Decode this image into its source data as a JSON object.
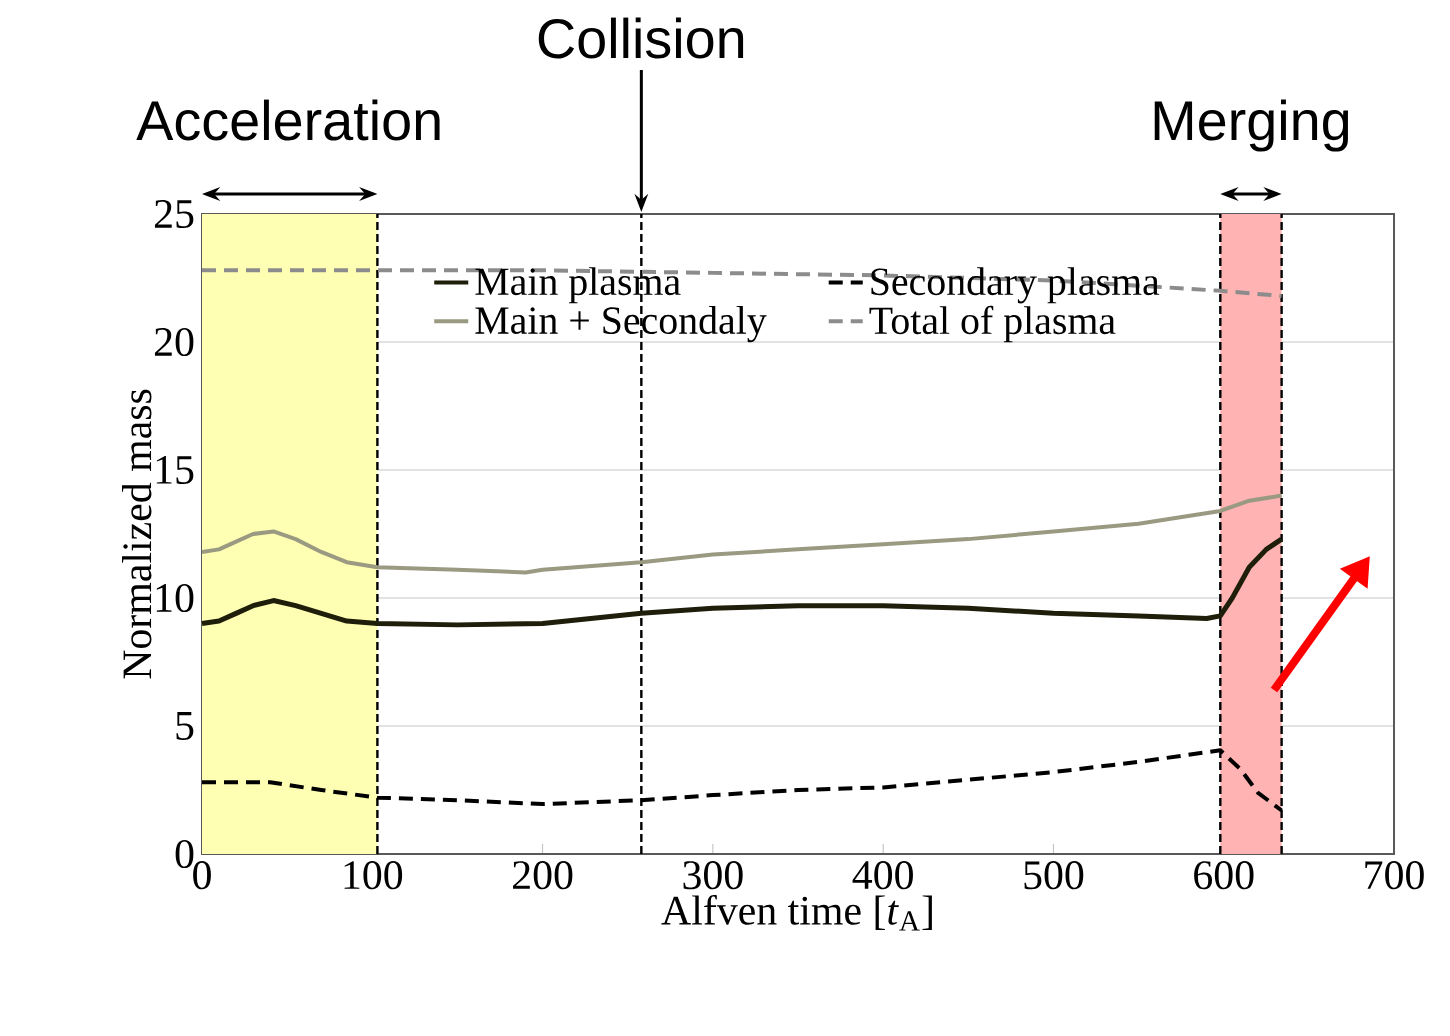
{
  "chart_data": {
    "type": "line",
    "xlabel": "Alfven time [*t*$_{A}$]",
    "ylabel": "Normalized mass",
    "xlim": [
      0,
      700
    ],
    "xticks": [
      0,
      100,
      200,
      300,
      400,
      500,
      600,
      700
    ],
    "ylim": [
      0,
      25
    ],
    "yticks": [
      0,
      5,
      10,
      15,
      20,
      25
    ],
    "grid": "y",
    "legend": "top",
    "marker": "none",
    "series": [
      {
        "name": "Main plasma",
        "color": "#1e1e0a",
        "line_style": "solid",
        "x": [
          0,
          10,
          20,
          30,
          42,
          55,
          70,
          85,
          103,
          150,
          200,
          258,
          300,
          350,
          400,
          450,
          500,
          550,
          590,
          598,
          605,
          615,
          625,
          634
        ],
        "values": [
          9.0,
          9.1,
          9.4,
          9.7,
          9.9,
          9.7,
          9.4,
          9.1,
          9.0,
          8.95,
          9.0,
          9.4,
          9.6,
          9.7,
          9.7,
          9.6,
          9.4,
          9.3,
          9.2,
          9.3,
          10.0,
          11.2,
          11.9,
          12.3
        ]
      },
      {
        "name": "Secondary plasma",
        "color": "#000000",
        "line_style": "dashed",
        "x": [
          0,
          40,
          70,
          103,
          150,
          200,
          258,
          300,
          350,
          400,
          450,
          500,
          550,
          598,
          610,
          620,
          634
        ],
        "values": [
          2.8,
          2.8,
          2.5,
          2.2,
          2.1,
          1.95,
          2.1,
          2.3,
          2.5,
          2.6,
          2.9,
          3.2,
          3.6,
          4.05,
          3.3,
          2.4,
          1.7
        ]
      },
      {
        "name": "Main + Secondaly",
        "color": "#9a9a82",
        "line_style": "solid",
        "x": [
          0,
          10,
          20,
          30,
          42,
          55,
          70,
          85,
          103,
          150,
          190,
          200,
          258,
          300,
          350,
          400,
          450,
          500,
          550,
          598,
          615,
          634
        ],
        "values": [
          11.8,
          11.9,
          12.2,
          12.5,
          12.6,
          12.3,
          11.8,
          11.4,
          11.2,
          11.1,
          11.0,
          11.1,
          11.4,
          11.7,
          11.9,
          12.1,
          12.3,
          12.6,
          12.9,
          13.4,
          13.8,
          14.0
        ]
      },
      {
        "name": "Total of plasma",
        "color": "#8c8c8c",
        "line_style": "dashed",
        "x": [
          0,
          100,
          200,
          300,
          400,
          450,
          500,
          550,
          598,
          634
        ],
        "values": [
          22.8,
          22.8,
          22.8,
          22.7,
          22.6,
          22.5,
          22.4,
          22.2,
          22.0,
          21.8
        ]
      }
    ],
    "bands": [
      {
        "axis": "x",
        "from": 0,
        "to": 103,
        "label": "Acceleration",
        "color": "#ffffb3"
      },
      {
        "axis": "x",
        "from": 598,
        "to": 634,
        "label": "Merging",
        "color": "#ffb3b3"
      }
    ],
    "ref_lines": [
      {
        "axis": "x",
        "value": 103,
        "line_style": "dashed"
      },
      {
        "axis": "x",
        "value": 258,
        "label": "Collision",
        "line_style": "dashed"
      },
      {
        "axis": "x",
        "value": 598,
        "line_style": "dashed"
      },
      {
        "axis": "x",
        "value": 634,
        "line_style": "dashed"
      }
    ]
  }
}
